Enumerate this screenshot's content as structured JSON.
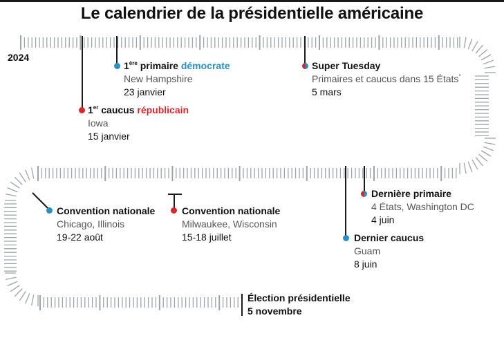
{
  "title": "Le calendrier de la présidentielle américaine",
  "year": "2024",
  "colors": {
    "democrat": "#2a8fc4",
    "republican": "#d9262e",
    "tick": "#9ea3a8",
    "text": "#111111",
    "subtext": "#555555"
  },
  "events": {
    "dem_primary": {
      "sup": "ère",
      "num": "1",
      "label": "primaire",
      "party": "démocrate",
      "place": "New Hampshire",
      "date": "23 janvier",
      "dot": "democrat"
    },
    "rep_caucus": {
      "sup": "er",
      "num": "1",
      "label": "caucus",
      "party": "républicain",
      "place": "Iowa",
      "date": "15 janvier",
      "dot": "republican"
    },
    "super_tuesday": {
      "title": "Super Tuesday",
      "place": "Primaires et caucus dans 15 États",
      "footnote": "*",
      "date": "5 mars",
      "dot": "split"
    },
    "last_primary": {
      "title": "Dernière primaire",
      "place": "4 États, Washington DC",
      "date": "4 juin",
      "dot": "split"
    },
    "last_caucus": {
      "title": "Dernier caucus",
      "place": "Guam",
      "date": "8 juin",
      "dot": "democrat"
    },
    "convention_rep": {
      "title": "Convention nationale",
      "place": "Milwaukee, Wisconsin",
      "date": "15-18 juillet",
      "dot": "republican"
    },
    "convention_dem": {
      "title": "Convention nationale",
      "place": "Chicago, Illinois",
      "date": "19-22 août",
      "dot": "democrat"
    },
    "election": {
      "title": "Élection présidentielle",
      "date": "5 novembre"
    }
  }
}
